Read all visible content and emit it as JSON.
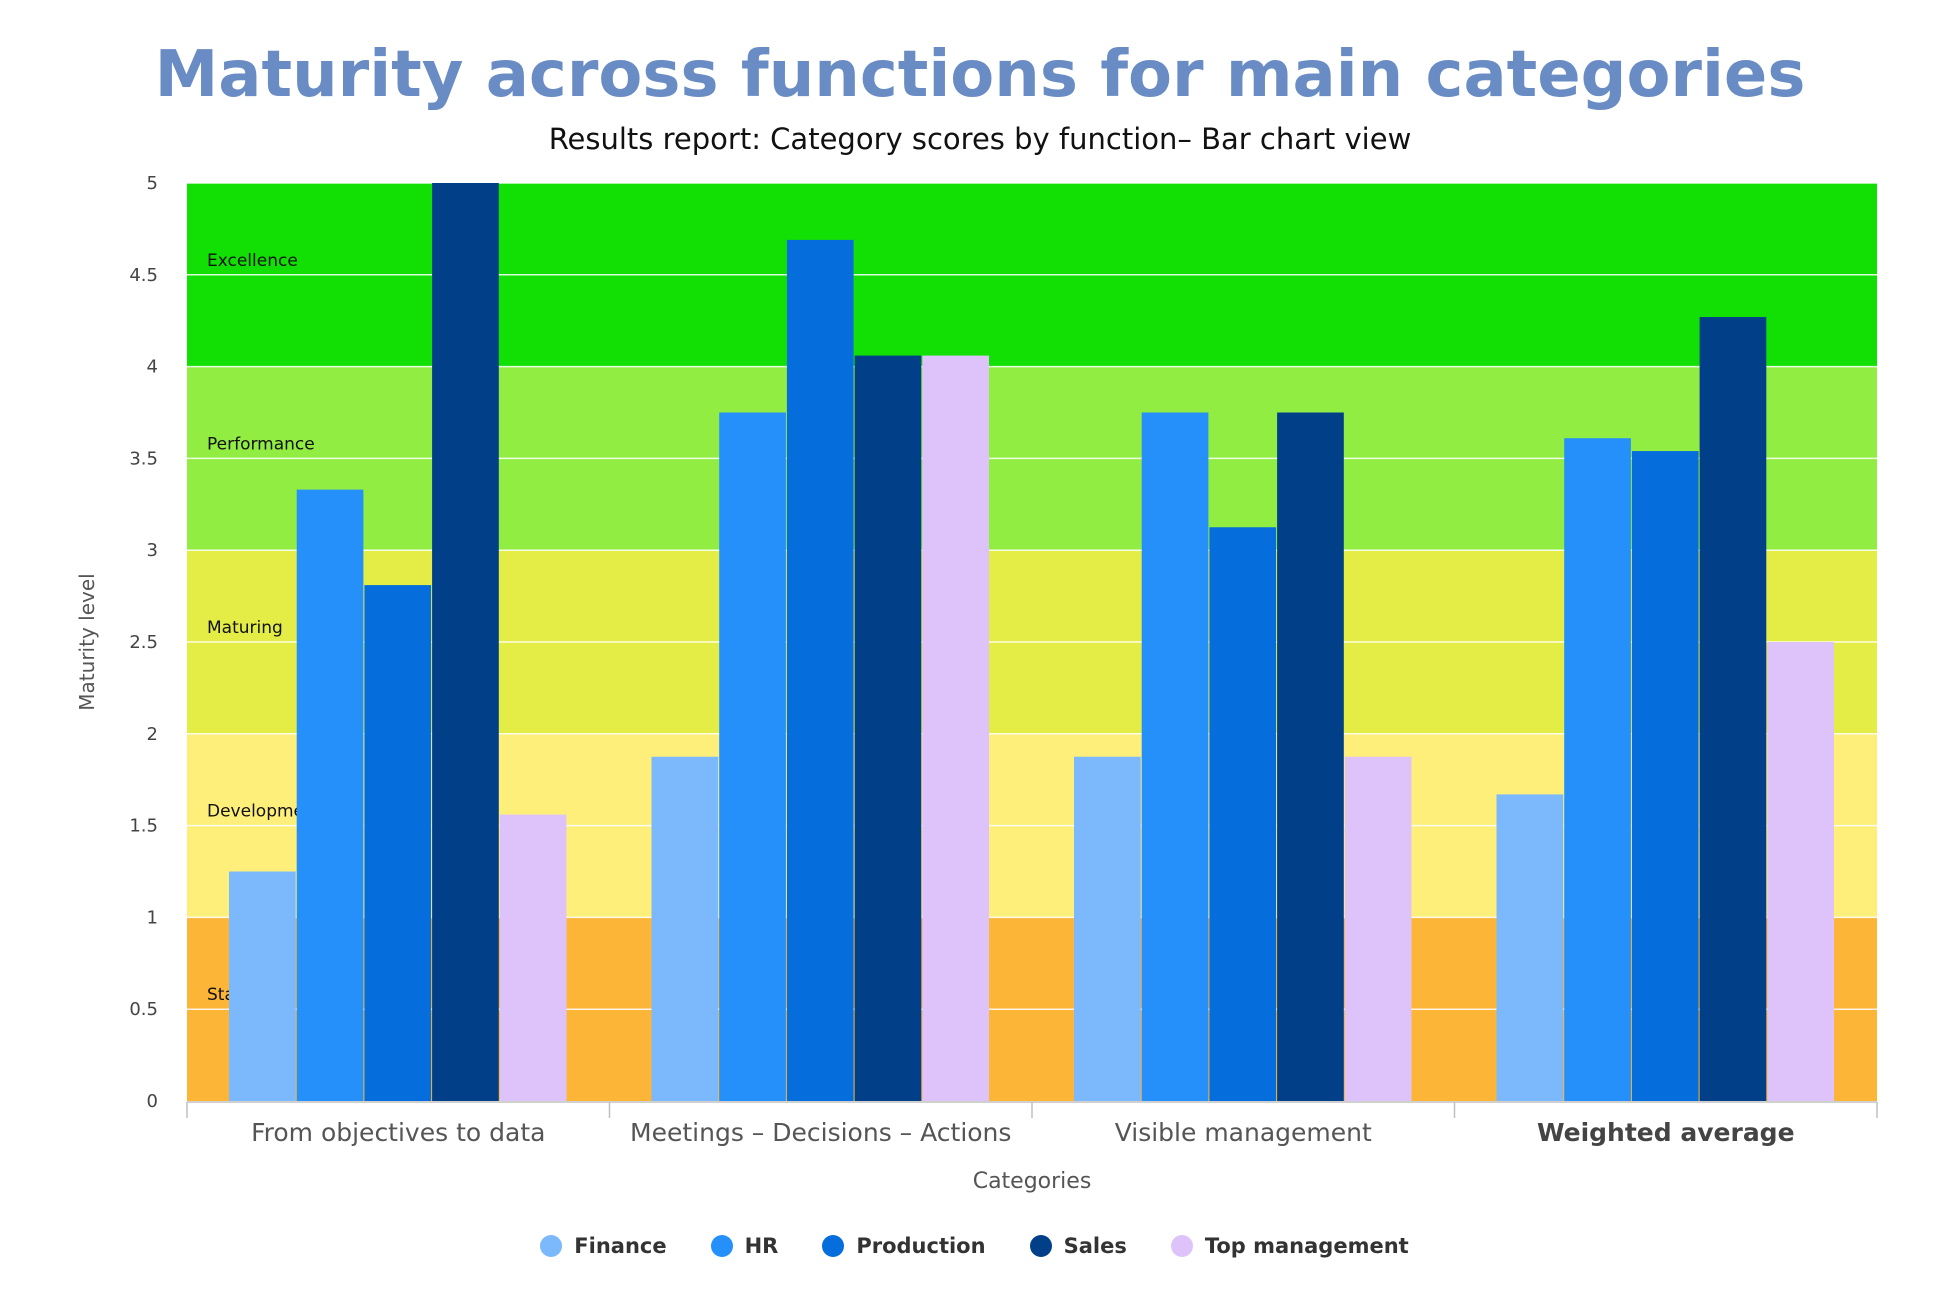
{
  "chart_data": {
    "type": "bar",
    "title": "Maturity across functions for main categories",
    "subtitle": "Results report: Category scores by function– Bar chart view",
    "xlabel": "Categories",
    "ylabel": "Maturity level",
    "ylim": [
      0,
      5
    ],
    "yticks": [
      "0",
      "0.5",
      "1",
      "1.5",
      "2",
      "2.5",
      "3",
      "3.5",
      "4",
      "4.5",
      "5"
    ],
    "categories": [
      "From objectives to data",
      "Meetings – Decisions – Actions",
      "Visible management",
      "Weighted average"
    ],
    "series": [
      {
        "name": "Finance",
        "color": "#7cb9fc",
        "values": [
          1.25,
          1.875,
          1.875,
          1.67
        ]
      },
      {
        "name": "HR",
        "color": "#2690fa",
        "values": [
          3.33,
          3.75,
          3.75,
          3.61
        ]
      },
      {
        "name": "Production",
        "color": "#056edc",
        "values": [
          2.81,
          4.69,
          3.125,
          3.54
        ]
      },
      {
        "name": "Sales",
        "color": "#014089",
        "values": [
          5.0,
          4.06,
          3.75,
          4.27
        ]
      },
      {
        "name": "Top management",
        "color": "#dec3fb",
        "values": [
          1.56,
          4.06,
          1.875,
          2.5
        ]
      }
    ],
    "bands": [
      {
        "label": "Starting",
        "from": 0,
        "to": 1,
        "color": "#fcb536"
      },
      {
        "label": "Development",
        "from": 1,
        "to": 2,
        "color": "#fdef7a"
      },
      {
        "label": "Maturing",
        "from": 2,
        "to": 3,
        "color": "#e4ed45"
      },
      {
        "label": "Performance",
        "from": 3,
        "to": 4,
        "color": "#92ed42"
      },
      {
        "label": "Excellence",
        "from": 4,
        "to": 5,
        "color": "#12e004"
      }
    ],
    "grid": true,
    "legend_position": "bottom-center"
  }
}
